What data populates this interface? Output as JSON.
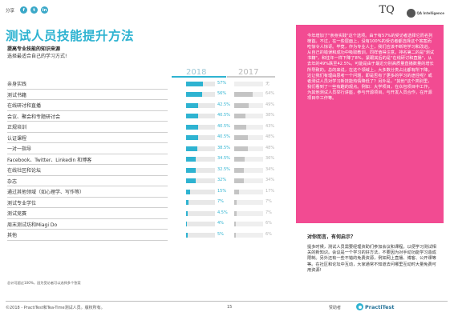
{
  "header": {
    "share_label": "分享",
    "social_icons": [
      {
        "name": "facebook-icon",
        "glyph": "f"
      },
      {
        "name": "twitter-icon",
        "glyph": "t"
      },
      {
        "name": "linkedin-icon",
        "glyph": "in"
      }
    ],
    "logo_tq_text": "TQ",
    "logo_qa_text": "QA Intelligence"
  },
  "title": "测试人员技能提升方法",
  "subtitle": "提高专业技能的知识来源",
  "subtitle2": "选择最适合自己的学习方式!",
  "years": {
    "current": "2018",
    "previous": "2017"
  },
  "colors": {
    "accent": "#2eb3d1",
    "magenta": "#f24b92",
    "grey": "#c4c4c4"
  },
  "rows": [
    {
      "label": "亲身实践",
      "v2018": 57,
      "p2018": "57%",
      "v2017": null,
      "p2017": "无"
    },
    {
      "label": "测试书籍",
      "v2018": 56,
      "p2018": "56%",
      "v2017": 64,
      "p2017": "64%"
    },
    {
      "label": "在线研讨和直播",
      "v2018": 42.5,
      "p2018": "42.5%",
      "v2017": 49,
      "p2017": "49%"
    },
    {
      "label": "会议、聚会和专题研讨会",
      "v2018": 40.5,
      "p2018": "40.5%",
      "v2017": 38,
      "p2017": "38%"
    },
    {
      "label": "正规培训",
      "v2018": 40.5,
      "p2018": "40.5%",
      "v2017": 43,
      "p2017": "43%"
    },
    {
      "label": "认证课程",
      "v2018": 40.5,
      "p2018": "40.5%",
      "v2017": 48,
      "p2017": "48%"
    },
    {
      "label": "一对一指导",
      "v2018": 38.5,
      "p2018": "38.5%",
      "v2017": 48,
      "p2017": "48%"
    },
    {
      "label": "Facebook、Twitter、Linkedin 和博客",
      "v2018": 34.5,
      "p2018": "34.5%",
      "v2017": 36,
      "p2017": "36%"
    },
    {
      "label": "在线社区和论坛",
      "v2018": 32.5,
      "p2018": "32.5%",
      "v2017": 34,
      "p2017": "34%"
    },
    {
      "label": "杂志",
      "v2018": 32,
      "p2018": "32%",
      "v2017": 34,
      "p2017": "34%"
    },
    {
      "label": "通过其他领域（如心理学、写作等）",
      "v2018": 15,
      "p2018": "15%",
      "v2017": 17,
      "p2017": "17%"
    },
    {
      "label": "测试专业学位",
      "v2018": 7,
      "p2018": "7%",
      "v2017": 7,
      "p2017": "7%"
    },
    {
      "label": "测试竞赛",
      "v2018": 4.5,
      "p2018": "4.5%",
      "v2017": 7,
      "p2017": "7%"
    },
    {
      "label": "周末测试坊和Miagi Do",
      "v2018": 4,
      "p2018": "4%",
      "v2017": 6,
      "p2017": "6%"
    },
    {
      "label": "其他",
      "v2018": 5,
      "p2018": "5%",
      "v2017": 6,
      "p2017": "6%"
    }
  ],
  "footnote": "总计可超过100%，因为受访者可以选择多个答案",
  "magenta_text": "今年增加了\"亲身实践\"这个选项。由于有57%的受访者选择它而名列榜首。不过，在一些层面上，没有100%的受访者都选择这个答案而吃惊令人惊讶。毕竟，作为专业人士，我们应该不断地学习和改进。从自己的错误和成功中吸取教训，同样值得注意。排名第二的是\"测试书籍\"，和往年一样下降了8%，紧跟其后的是\"在线研讨和直播\"，从去年的49%跌至42.5%。可能是由于最近分别高质量直播数量的增长所导致的。总的来说，在这个领域上，大多数分类占比都有所下降。这让我们有理由思考一个问题，即是否有了更多的学习的途径呢？或者测试人员对学习新技能热情降低了？另外是，\"其他\"这个类别里，我们看到了一些有趣的观点。例如：大学项目，在众包项目中工作，为其他测试人员举行讲座，参与开源项目，与开发人员合作，在开源项目中工作等。",
  "side": {
    "title": "对你而言，有何启示？",
    "text": "提多时候，测试人员需要经理资助们参加会议和课程。以便学习测试相关的新知识。会议是一个学习的好方法，不要因为对手动功能学习造成限制。另外还有一些不错的免费资源，例如网上直播、博客、公开课等等。在社区和论坛中互动，大家通常不知道去问哪里互动时大量免费可用资源!"
  },
  "footer": {
    "copyright": "©2018 - PractiTest和Tea-Time测试人员。版权所有。",
    "page_number": "15",
    "sponsor_label": "赞助者",
    "sponsor_logo": "PractiTest"
  }
}
